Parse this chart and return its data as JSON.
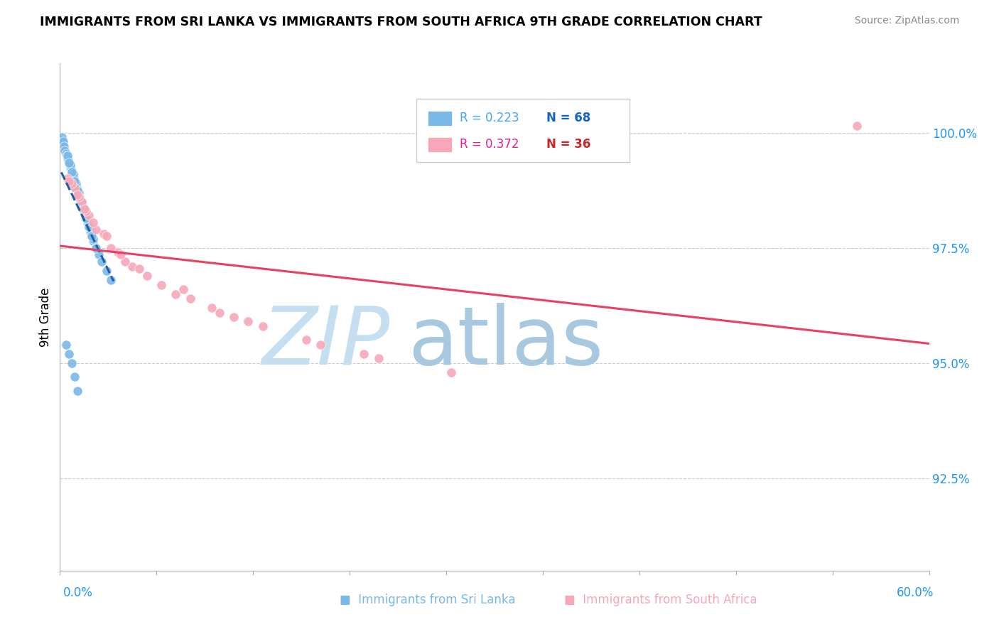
{
  "title": "IMMIGRANTS FROM SRI LANKA VS IMMIGRANTS FROM SOUTH AFRICA 9TH GRADE CORRELATION CHART",
  "source": "Source: ZipAtlas.com",
  "ylabel": "9th Grade",
  "ylabel_ticks": [
    92.5,
    95.0,
    97.5,
    100.0
  ],
  "ylabel_tick_labels": [
    "92.5%",
    "95.0%",
    "97.5%",
    "100.0%"
  ],
  "xlim": [
    0.0,
    60.0
  ],
  "ylim": [
    90.5,
    101.5
  ],
  "x_tick_label_left": "0.0%",
  "x_tick_label_right": "60.0%",
  "legend_r1": "R = 0.223",
  "legend_n1": "N = 68",
  "legend_r2": "R = 0.372",
  "legend_n2": "N = 36",
  "color_sri_lanka": "#7ab8e8",
  "color_south_africa": "#f7a8b8",
  "color_trend_sri_lanka": "#1a5fa8",
  "color_trend_south_africa": "#e84060",
  "color_r1": "#42a5f5",
  "color_n1": "#1565c0",
  "color_r2": "#e91e8c",
  "color_n2": "#c62828",
  "watermark_zip_color": "#c5dff0",
  "watermark_atlas_color": "#a8c8e0",
  "sri_lanka_x": [
    0.15,
    0.25,
    0.3,
    0.35,
    0.4,
    0.45,
    0.5,
    0.55,
    0.6,
    0.65,
    0.7,
    0.75,
    0.8,
    0.85,
    0.9,
    0.95,
    1.0,
    1.05,
    1.1,
    1.15,
    1.2,
    1.25,
    1.3,
    1.35,
    1.4,
    1.45,
    1.5,
    1.55,
    1.6,
    1.65,
    1.7,
    1.75,
    1.8,
    1.9,
    2.0,
    2.1,
    2.2,
    2.3,
    2.5,
    2.7,
    2.9,
    3.2,
    3.5,
    0.5,
    0.7,
    0.9,
    1.1,
    1.3,
    1.5,
    1.7,
    1.9,
    2.1,
    2.3,
    2.5,
    0.6,
    0.8,
    1.0,
    1.2,
    1.4,
    1.6,
    1.8,
    2.0,
    2.2,
    0.4,
    0.6,
    0.8,
    1.0,
    1.2
  ],
  "sri_lanka_y": [
    99.9,
    99.8,
    99.7,
    99.6,
    99.55,
    99.5,
    99.45,
    99.4,
    99.35,
    99.3,
    99.25,
    99.2,
    99.15,
    99.1,
    99.05,
    99.0,
    98.95,
    98.9,
    98.85,
    98.8,
    98.75,
    98.7,
    98.65,
    98.6,
    98.55,
    98.5,
    98.45,
    98.4,
    98.35,
    98.3,
    98.25,
    98.2,
    98.15,
    98.05,
    97.95,
    97.85,
    97.75,
    97.65,
    97.5,
    97.35,
    97.2,
    97.0,
    96.8,
    99.5,
    99.3,
    99.1,
    98.9,
    98.7,
    98.5,
    98.3,
    98.1,
    97.9,
    97.7,
    97.5,
    99.35,
    99.15,
    98.95,
    98.75,
    98.55,
    98.35,
    98.15,
    97.95,
    97.75,
    95.4,
    95.2,
    95.0,
    94.7,
    94.4
  ],
  "south_africa_x": [
    0.5,
    1.0,
    1.5,
    2.0,
    3.0,
    4.0,
    5.0,
    7.0,
    9.0,
    11.0,
    14.0,
    18.0,
    22.0,
    27.0,
    55.0,
    0.8,
    1.3,
    1.8,
    2.5,
    3.5,
    4.5,
    6.0,
    8.0,
    10.5,
    13.0,
    17.0,
    21.0,
    0.6,
    1.2,
    1.7,
    2.3,
    3.2,
    4.2,
    5.5,
    8.5,
    12.0
  ],
  "south_africa_y": [
    99.0,
    98.8,
    98.5,
    98.2,
    97.8,
    97.4,
    97.1,
    96.7,
    96.4,
    96.1,
    95.8,
    95.4,
    95.1,
    94.8,
    100.15,
    98.9,
    98.6,
    98.3,
    97.9,
    97.5,
    97.2,
    96.9,
    96.5,
    96.2,
    95.9,
    95.5,
    95.2,
    98.95,
    98.65,
    98.35,
    98.05,
    97.75,
    97.35,
    97.05,
    96.6,
    96.0
  ]
}
